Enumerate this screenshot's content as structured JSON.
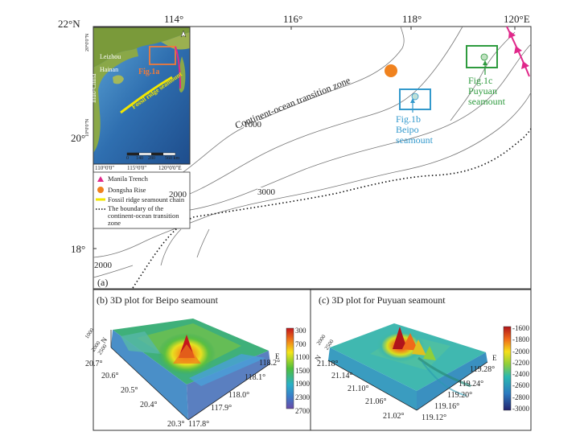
{
  "colors": {
    "trench": "#e0288a",
    "dongsha": "#f0821e",
    "beipo": "#3399cc",
    "puyuan": "#2e9b3e",
    "ridge": "#f2e600",
    "panel_border": "#333333"
  },
  "top_axis": {
    "lat_label": "22°N",
    "lon_labels": [
      "114°",
      "116°",
      "118°",
      "120°E"
    ]
  },
  "left_axis": {
    "lat_labels": [
      "20°",
      "18°"
    ]
  },
  "contours": [
    "1000",
    "2000",
    "3000",
    "2000"
  ],
  "zone_label": "Continent-ocean transition zone",
  "panel_a_label": "(a)",
  "callouts": {
    "fig1b": [
      "Fig.1b",
      "Beipo",
      "seamount"
    ],
    "fig1c": [
      "Fig.1c",
      "Puyuan",
      "seamount"
    ]
  },
  "inset": {
    "labels": {
      "leizhou": "Leizhou",
      "hainan": "Hainan",
      "indochina": "Indo-China",
      "fig1a": "Fig.1a",
      "ridge": "Fossil ridge seamount",
      "lat1": "20°0'0\"N",
      "lat2": "10°0'0\"N",
      "lon": [
        "110°0'0\"",
        "115°0'0\"",
        "120°0'0\"E"
      ],
      "scale": [
        "0",
        "140",
        "280",
        "560 km"
      ]
    }
  },
  "legend": {
    "items": [
      {
        "symbol": "trench",
        "label": "Manila Trench"
      },
      {
        "symbol": "dongsha",
        "label": "Dongsha Rise"
      },
      {
        "symbol": "ridge",
        "label": "Fossil ridge seamount chain"
      },
      {
        "symbol": "boundary",
        "label": "The boundary of the continent-ocean transition zone"
      }
    ]
  },
  "panel_b": {
    "title": "(b) 3D plot for Beipo seamount",
    "depth_ticks": [
      "1000",
      "2000",
      "2500"
    ],
    "north_label": "N",
    "east_label": "E",
    "lat_ticks": [
      "20.7°",
      "20.6°",
      "20.5°",
      "20.4°",
      "20.3°"
    ],
    "lon_ticks": [
      "118.2°",
      "118.1°",
      "118.0°",
      "117.9°",
      "117.8°"
    ],
    "colorbar_ticks": [
      "300",
      "700",
      "1100",
      "1500",
      "1900",
      "2300",
      "2700"
    ]
  },
  "panel_c": {
    "title": "(c) 3D plot for Puyuan seamount",
    "depth_ticks": [
      "2000",
      "2500"
    ],
    "north_label": "N",
    "east_label": "E",
    "lat_ticks": [
      "21.18°",
      "21.14°",
      "21.10°",
      "21.06°",
      "21.02°"
    ],
    "lon_ticks": [
      "119.28°",
      "119.24°",
      "119.20°",
      "119.16°",
      "119.12°"
    ],
    "colorbar_ticks": [
      "-1600",
      "-1800",
      "-2000",
      "-2200",
      "-2400",
      "-2600",
      "-2800",
      "-3000"
    ]
  }
}
